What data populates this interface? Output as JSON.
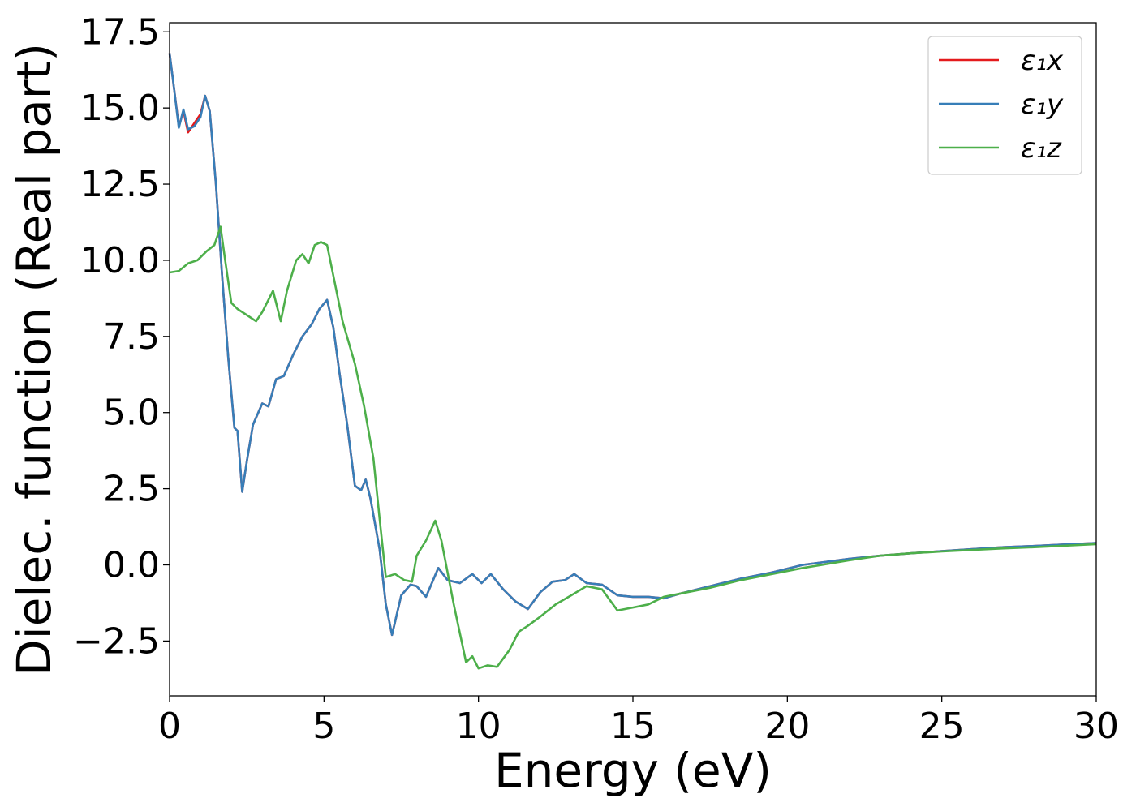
{
  "chart_data": {
    "type": "line",
    "xlabel": "Energy (eV)",
    "ylabel": "Dielec. function (Real part)",
    "xlim": [
      0,
      30
    ],
    "ylim": [
      -4.3,
      17.8
    ],
    "xticks": [
      0,
      5,
      10,
      15,
      20,
      25,
      30
    ],
    "xtick_labels": [
      "0",
      "5",
      "10",
      "15",
      "20",
      "25",
      "30"
    ],
    "yticks": [
      -2.5,
      0.0,
      2.5,
      5.0,
      7.5,
      10.0,
      12.5,
      15.0,
      17.5
    ],
    "ytick_labels": [
      "−2.5",
      "0.0",
      "2.5",
      "5.0",
      "7.5",
      "10.0",
      "12.5",
      "15.0",
      "17.5"
    ],
    "grid": false,
    "legend_position": "top-right",
    "series": [
      {
        "name": "ε₁x",
        "color": "#e41a1c",
        "points": [
          [
            0,
            16.8
          ],
          [
            0.15,
            15.6
          ],
          [
            0.3,
            14.4
          ],
          [
            0.45,
            14.9
          ],
          [
            0.6,
            14.2
          ],
          [
            0.8,
            14.5
          ],
          [
            1.0,
            14.8
          ],
          [
            1.15,
            15.4
          ],
          [
            1.3,
            14.9
          ],
          [
            1.5,
            12.5
          ],
          [
            1.7,
            9.5
          ],
          [
            1.9,
            6.8
          ],
          [
            2.1,
            4.5
          ],
          [
            2.2,
            4.4
          ],
          [
            2.35,
            2.4
          ],
          [
            2.5,
            3.4
          ],
          [
            2.7,
            4.6
          ],
          [
            3.0,
            5.3
          ],
          [
            3.2,
            5.2
          ],
          [
            3.45,
            6.1
          ],
          [
            3.7,
            6.2
          ],
          [
            4.0,
            6.9
          ],
          [
            4.3,
            7.5
          ],
          [
            4.6,
            7.9
          ],
          [
            4.85,
            8.4
          ],
          [
            5.1,
            8.7
          ],
          [
            5.3,
            7.8
          ],
          [
            5.5,
            6.3
          ],
          [
            5.75,
            4.6
          ],
          [
            6.0,
            2.6
          ],
          [
            6.2,
            2.45
          ],
          [
            6.35,
            2.8
          ],
          [
            6.5,
            2.2
          ],
          [
            6.8,
            0.5
          ],
          [
            7.0,
            -1.3
          ],
          [
            7.2,
            -2.3
          ],
          [
            7.5,
            -1.0
          ],
          [
            7.8,
            -0.65
          ],
          [
            8.0,
            -0.7
          ],
          [
            8.3,
            -1.05
          ],
          [
            8.7,
            -0.1
          ],
          [
            9.0,
            -0.5
          ],
          [
            9.4,
            -0.6
          ],
          [
            9.8,
            -0.3
          ],
          [
            10.1,
            -0.6
          ],
          [
            10.4,
            -0.3
          ],
          [
            10.8,
            -0.8
          ],
          [
            11.2,
            -1.2
          ],
          [
            11.6,
            -1.45
          ],
          [
            12.0,
            -0.9
          ],
          [
            12.4,
            -0.55
          ],
          [
            12.8,
            -0.5
          ],
          [
            13.1,
            -0.3
          ],
          [
            13.5,
            -0.6
          ],
          [
            14.0,
            -0.65
          ],
          [
            14.5,
            -1.0
          ],
          [
            15.0,
            -1.05
          ],
          [
            15.5,
            -1.05
          ],
          [
            16.0,
            -1.1
          ],
          [
            16.5,
            -0.95
          ],
          [
            17.5,
            -0.7
          ],
          [
            18.5,
            -0.45
          ],
          [
            19.5,
            -0.25
          ],
          [
            20.5,
            0.0
          ],
          [
            22,
            0.2
          ],
          [
            23,
            0.3
          ],
          [
            24,
            0.38
          ],
          [
            25,
            0.45
          ],
          [
            26,
            0.52
          ],
          [
            27,
            0.58
          ],
          [
            28,
            0.62
          ],
          [
            29,
            0.67
          ],
          [
            30,
            0.72
          ]
        ]
      },
      {
        "name": "ε₁y",
        "color": "#377eb8",
        "points": [
          [
            0,
            16.8
          ],
          [
            0.15,
            15.6
          ],
          [
            0.3,
            14.35
          ],
          [
            0.45,
            14.95
          ],
          [
            0.6,
            14.3
          ],
          [
            0.8,
            14.4
          ],
          [
            1.0,
            14.7
          ],
          [
            1.15,
            15.4
          ],
          [
            1.3,
            14.9
          ],
          [
            1.5,
            12.5
          ],
          [
            1.7,
            9.5
          ],
          [
            1.9,
            6.8
          ],
          [
            2.1,
            4.5
          ],
          [
            2.2,
            4.4
          ],
          [
            2.35,
            2.4
          ],
          [
            2.5,
            3.4
          ],
          [
            2.7,
            4.6
          ],
          [
            3.0,
            5.3
          ],
          [
            3.2,
            5.2
          ],
          [
            3.45,
            6.1
          ],
          [
            3.7,
            6.2
          ],
          [
            4.0,
            6.9
          ],
          [
            4.3,
            7.5
          ],
          [
            4.6,
            7.9
          ],
          [
            4.85,
            8.4
          ],
          [
            5.1,
            8.7
          ],
          [
            5.3,
            7.8
          ],
          [
            5.5,
            6.3
          ],
          [
            5.75,
            4.6
          ],
          [
            6.0,
            2.6
          ],
          [
            6.2,
            2.45
          ],
          [
            6.35,
            2.8
          ],
          [
            6.5,
            2.2
          ],
          [
            6.8,
            0.5
          ],
          [
            7.0,
            -1.3
          ],
          [
            7.2,
            -2.3
          ],
          [
            7.5,
            -1.0
          ],
          [
            7.8,
            -0.65
          ],
          [
            8.0,
            -0.7
          ],
          [
            8.3,
            -1.05
          ],
          [
            8.7,
            -0.1
          ],
          [
            9.0,
            -0.5
          ],
          [
            9.4,
            -0.6
          ],
          [
            9.8,
            -0.3
          ],
          [
            10.1,
            -0.6
          ],
          [
            10.4,
            -0.3
          ],
          [
            10.8,
            -0.8
          ],
          [
            11.2,
            -1.2
          ],
          [
            11.6,
            -1.45
          ],
          [
            12.0,
            -0.9
          ],
          [
            12.4,
            -0.55
          ],
          [
            12.8,
            -0.5
          ],
          [
            13.1,
            -0.3
          ],
          [
            13.5,
            -0.6
          ],
          [
            14.0,
            -0.65
          ],
          [
            14.5,
            -1.0
          ],
          [
            15.0,
            -1.05
          ],
          [
            15.5,
            -1.05
          ],
          [
            16.0,
            -1.1
          ],
          [
            16.5,
            -0.95
          ],
          [
            17.5,
            -0.7
          ],
          [
            18.5,
            -0.45
          ],
          [
            19.5,
            -0.25
          ],
          [
            20.5,
            0.0
          ],
          [
            22,
            0.2
          ],
          [
            23,
            0.3
          ],
          [
            24,
            0.38
          ],
          [
            25,
            0.45
          ],
          [
            26,
            0.52
          ],
          [
            27,
            0.58
          ],
          [
            28,
            0.62
          ],
          [
            29,
            0.67
          ],
          [
            30,
            0.72
          ]
        ]
      },
      {
        "name": "ε₁z",
        "color": "#4daf4a",
        "points": [
          [
            0,
            9.6
          ],
          [
            0.3,
            9.65
          ],
          [
            0.6,
            9.9
          ],
          [
            0.9,
            10.0
          ],
          [
            1.2,
            10.3
          ],
          [
            1.45,
            10.5
          ],
          [
            1.65,
            11.1
          ],
          [
            1.8,
            10.0
          ],
          [
            2.0,
            8.6
          ],
          [
            2.2,
            8.4
          ],
          [
            2.5,
            8.2
          ],
          [
            2.8,
            8.0
          ],
          [
            3.0,
            8.3
          ],
          [
            3.35,
            9.0
          ],
          [
            3.6,
            8.0
          ],
          [
            3.8,
            9.0
          ],
          [
            4.1,
            10.0
          ],
          [
            4.3,
            10.2
          ],
          [
            4.5,
            9.9
          ],
          [
            4.7,
            10.5
          ],
          [
            4.9,
            10.6
          ],
          [
            5.1,
            10.5
          ],
          [
            5.3,
            9.5
          ],
          [
            5.6,
            8.0
          ],
          [
            6.0,
            6.6
          ],
          [
            6.3,
            5.2
          ],
          [
            6.6,
            3.5
          ],
          [
            6.8,
            1.5
          ],
          [
            7.0,
            -0.4
          ],
          [
            7.3,
            -0.3
          ],
          [
            7.6,
            -0.5
          ],
          [
            7.85,
            -0.55
          ],
          [
            8.0,
            0.3
          ],
          [
            8.3,
            0.8
          ],
          [
            8.6,
            1.45
          ],
          [
            8.8,
            0.8
          ],
          [
            9.2,
            -1.3
          ],
          [
            9.6,
            -3.2
          ],
          [
            9.8,
            -3.0
          ],
          [
            10.0,
            -3.4
          ],
          [
            10.3,
            -3.3
          ],
          [
            10.6,
            -3.35
          ],
          [
            11.0,
            -2.8
          ],
          [
            11.3,
            -2.2
          ],
          [
            11.6,
            -2.0
          ],
          [
            12.0,
            -1.7
          ],
          [
            12.5,
            -1.3
          ],
          [
            13.0,
            -1.0
          ],
          [
            13.5,
            -0.7
          ],
          [
            14.0,
            -0.8
          ],
          [
            14.5,
            -1.5
          ],
          [
            15.0,
            -1.4
          ],
          [
            15.5,
            -1.3
          ],
          [
            16.0,
            -1.05
          ],
          [
            16.5,
            -0.95
          ],
          [
            17.5,
            -0.75
          ],
          [
            18.5,
            -0.5
          ],
          [
            19.5,
            -0.3
          ],
          [
            20.5,
            -0.1
          ],
          [
            22,
            0.15
          ],
          [
            23,
            0.3
          ],
          [
            24,
            0.38
          ],
          [
            25,
            0.44
          ],
          [
            26,
            0.49
          ],
          [
            27,
            0.54
          ],
          [
            28,
            0.58
          ],
          [
            29,
            0.63
          ],
          [
            30,
            0.68
          ]
        ]
      }
    ]
  }
}
